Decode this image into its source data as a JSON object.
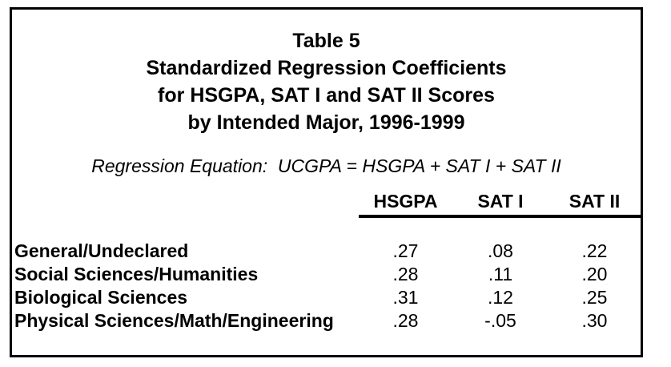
{
  "title": {
    "lines": [
      "Table 5",
      "Standardized Regression Coefficients",
      "for HSGPA, SAT I and SAT II Scores",
      "by Intended Major, 1996-1999"
    ]
  },
  "equation": {
    "text": "Regression Equation:  UCGPA = HSGPA + SAT I + SAT II"
  },
  "table": {
    "headers": [
      "HSGPA",
      "SAT I",
      "SAT II"
    ],
    "rows": [
      {
        "label": "General/Undeclared",
        "values": [
          ".27",
          ".08",
          ".22"
        ]
      },
      {
        "label": "Social Sciences/Humanities",
        "values": [
          ".28",
          ".11",
          ".20"
        ]
      },
      {
        "label": "Biological Sciences",
        "values": [
          ".31",
          ".12",
          ".25"
        ]
      },
      {
        "label": "Physical Sciences/Math/Engineering",
        "values": [
          ".28",
          "-.05",
          ".30"
        ]
      }
    ]
  },
  "colors": {
    "text": "#000000",
    "background": "#ffffff",
    "border": "#000000"
  }
}
